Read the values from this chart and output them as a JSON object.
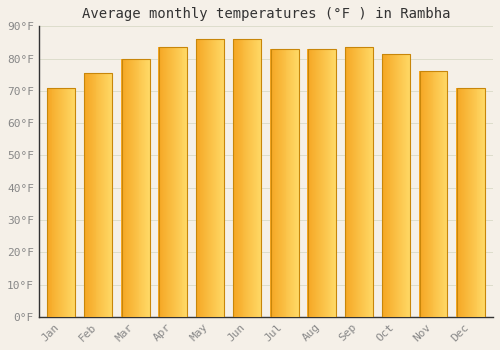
{
  "title": "Average monthly temperatures (°F ) in Rambha",
  "months": [
    "Jan",
    "Feb",
    "Mar",
    "Apr",
    "May",
    "Jun",
    "Jul",
    "Aug",
    "Sep",
    "Oct",
    "Nov",
    "Dec"
  ],
  "values": [
    71,
    75.5,
    80,
    83.5,
    86,
    86,
    83,
    83,
    83.5,
    81.5,
    76,
    71
  ],
  "bar_color_left": "#F5A623",
  "bar_color_right": "#FFD966",
  "bar_edge_color": "#C8860A",
  "background_color": "#F5F0E8",
  "plot_bg_color": "#F5F0E8",
  "grid_color": "#DDDDCC",
  "tick_label_color": "#888888",
  "title_color": "#333333",
  "spine_color": "#333333",
  "ylim": [
    0,
    90
  ],
  "yticks": [
    0,
    10,
    20,
    30,
    40,
    50,
    60,
    70,
    80,
    90
  ],
  "ytick_labels": [
    "0°F",
    "10°F",
    "20°F",
    "30°F",
    "40°F",
    "50°F",
    "60°F",
    "70°F",
    "80°F",
    "90°F"
  ],
  "title_fontsize": 10,
  "tick_fontsize": 8,
  "bar_width": 0.75,
  "n_strips": 30
}
